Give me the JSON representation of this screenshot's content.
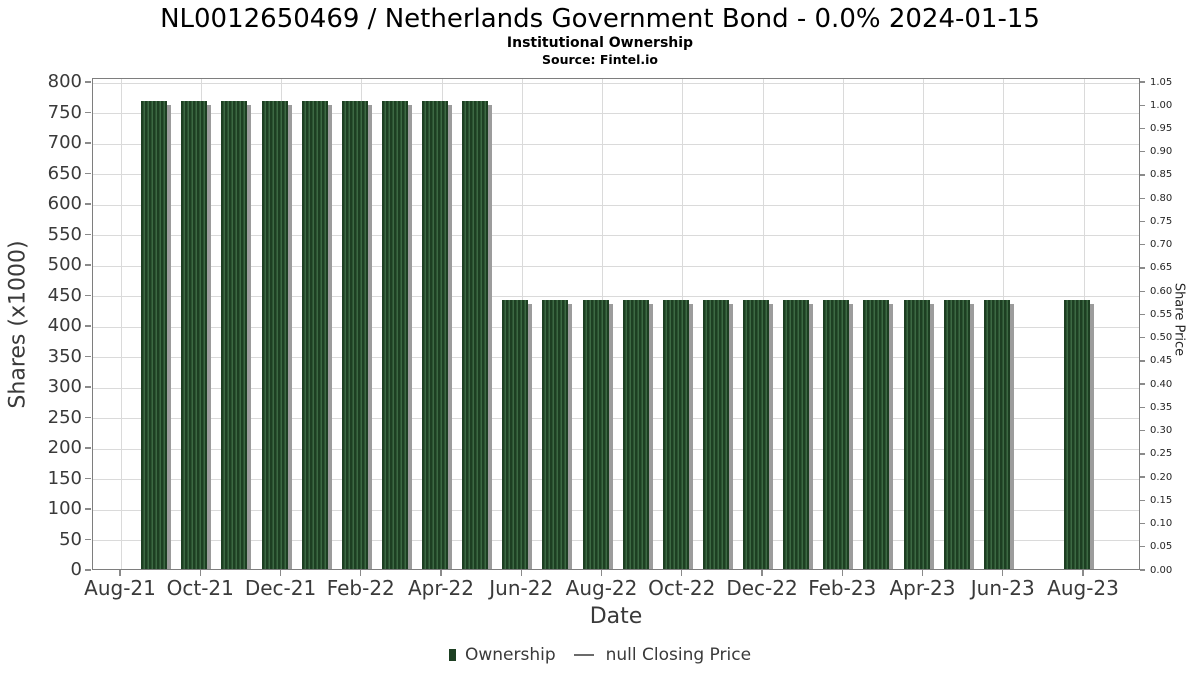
{
  "chart_data": {
    "type": "bar",
    "title": "NL0012650469 / Netherlands Government Bond - 0.0% 2024-01-15",
    "subtitle": "Institutional Ownership",
    "source": "Source: Fintel.io",
    "xlabel": "Date",
    "ylabel": "Shares (x1000)",
    "ylabel_right": "Share Price",
    "grid": true,
    "legend_position": "bottom",
    "ylim": [
      0,
      806
    ],
    "ylim_right": [
      0,
      1.0584
    ],
    "y_ticks": [
      0,
      50,
      100,
      150,
      200,
      250,
      300,
      350,
      400,
      450,
      500,
      550,
      600,
      650,
      700,
      750,
      800
    ],
    "y_ticks_right": [
      "0.00",
      "0.05",
      "0.10",
      "0.15",
      "0.20",
      "0.25",
      "0.30",
      "0.35",
      "0.40",
      "0.45",
      "0.50",
      "0.55",
      "0.60",
      "0.65",
      "0.70",
      "0.75",
      "0.80",
      "0.85",
      "0.90",
      "0.95",
      "1.00",
      "1.05"
    ],
    "x_months": [
      "Aug-21",
      "Sep-21",
      "Oct-21",
      "Nov-21",
      "Dec-21",
      "Jan-22",
      "Feb-22",
      "Mar-22",
      "Apr-22",
      "May-22",
      "Jun-22",
      "Jul-22",
      "Aug-22",
      "Sep-22",
      "Oct-22",
      "Nov-22",
      "Dec-22",
      "Jan-23",
      "Feb-23",
      "Mar-23",
      "Apr-23",
      "May-23",
      "Jun-23",
      "Jul-23",
      "Aug-23"
    ],
    "x_tick_labels": [
      "Aug-21",
      "Oct-21",
      "Dec-21",
      "Feb-22",
      "Apr-22",
      "Jun-22",
      "Aug-22",
      "Oct-22",
      "Dec-22",
      "Feb-23",
      "Apr-23",
      "Jun-23",
      "Aug-23"
    ],
    "series": [
      {
        "name": "Ownership",
        "type": "bar",
        "values": [
          null,
          770,
          770,
          770,
          770,
          770,
          770,
          770,
          770,
          770,
          445,
          445,
          445,
          445,
          445,
          445,
          445,
          445,
          445,
          445,
          445,
          445,
          445,
          null,
          445
        ]
      },
      {
        "name": "null Closing Price",
        "type": "line",
        "values": []
      }
    ],
    "colors": {
      "bar_dark": "#1d3f22",
      "bar_light": "#3c6943",
      "bar_shadow": "#9c9c9c",
      "grid": "#dadada",
      "axis_border": "#7e7e7e",
      "tick": "#8a8a8a",
      "tick_text": "#3a3a3a",
      "title_text": "#000000",
      "legend_dash": "#6b6b6b"
    }
  }
}
